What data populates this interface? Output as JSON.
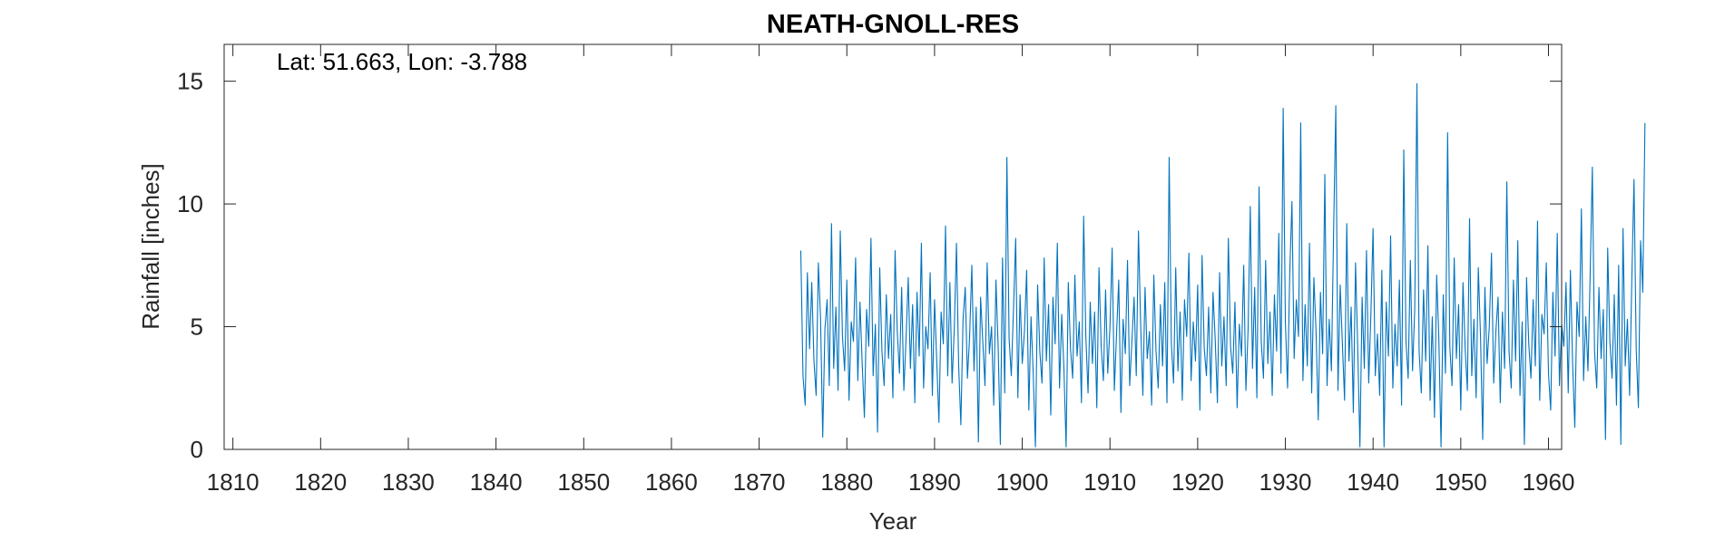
{
  "chart_data": {
    "type": "line",
    "title": "NEATH-GNOLL-RES",
    "xlabel": "Year",
    "ylabel": "Rainfall [inches]",
    "annotation": "Lat: 51.663, Lon: -3.788",
    "xlim": [
      1809,
      1961.5
    ],
    "ylim": [
      0,
      16.5
    ],
    "x_ticks": [
      1810,
      1820,
      1830,
      1840,
      1850,
      1860,
      1870,
      1880,
      1890,
      1900,
      1910,
      1920,
      1930,
      1940,
      1950,
      1960
    ],
    "y_ticks": [
      0,
      5,
      10,
      15
    ],
    "x_tick_labels": [
      "1810",
      "1820",
      "1830",
      "1840",
      "1850",
      "1860",
      "1870",
      "1880",
      "1890",
      "1900",
      "1910",
      "1920",
      "1930",
      "1940",
      "1950",
      "1960"
    ],
    "y_tick_labels": [
      "0",
      "5",
      "10",
      "15"
    ],
    "grid": false,
    "box": true,
    "line_color": "#0072BD",
    "series": [
      {
        "x_start": 1874.75,
        "x_step": 0.25,
        "values": [
          8.1,
          3.0,
          1.8,
          7.2,
          4.1,
          6.8,
          3.6,
          2.2,
          7.6,
          5.4,
          0.5,
          4.9,
          6.1,
          2.6,
          9.2,
          3.3,
          5.8,
          2.4,
          8.9,
          4.6,
          3.2,
          6.9,
          2.0,
          5.2,
          4.4,
          7.8,
          2.8,
          6.0,
          3.5,
          1.3,
          5.7,
          4.2,
          8.6,
          3.0,
          5.1,
          0.7,
          7.4,
          4.0,
          2.6,
          6.3,
          3.7,
          5.5,
          2.1,
          8.1,
          4.8,
          3.1,
          6.6,
          2.4,
          4.5,
          7.0,
          3.3,
          5.9,
          1.9,
          6.4,
          3.8,
          8.4,
          2.5,
          5.0,
          4.1,
          7.2,
          2.2,
          6.1,
          3.6,
          1.1,
          5.6,
          4.3,
          9.1,
          3.0,
          6.8,
          2.7,
          4.9,
          8.4,
          3.4,
          1.0,
          5.3,
          6.6,
          2.9,
          4.6,
          7.5,
          3.2,
          5.8,
          0.3,
          6.2,
          4.4,
          2.6,
          7.6,
          3.9,
          5.0,
          1.8,
          6.9,
          4.2,
          0.2,
          7.8,
          2.3,
          11.9,
          4.5,
          3.0,
          5.7,
          8.6,
          2.1,
          6.3,
          3.5,
          4.8,
          7.3,
          1.6,
          5.4,
          3.1,
          0.1,
          6.7,
          4.0,
          2.7,
          7.8,
          3.6,
          5.9,
          1.4,
          6.2,
          4.3,
          8.4,
          2.5,
          5.5,
          3.3,
          0.1,
          6.8,
          4.1,
          2.9,
          7.1,
          3.8,
          5.2,
          1.9,
          9.5,
          4.6,
          2.3,
          6.0,
          3.5,
          5.6,
          1.7,
          7.4,
          4.2,
          2.8,
          6.5,
          3.1,
          5.0,
          8.2,
          2.4,
          4.7,
          6.9,
          1.5,
          5.3,
          3.9,
          7.7,
          2.6,
          4.4,
          6.2,
          3.0,
          8.9,
          5.1,
          2.2,
          6.6,
          3.7,
          4.8,
          1.8,
          7.1,
          4.0,
          2.5,
          5.9,
          3.4,
          6.8,
          1.9,
          11.9,
          4.3,
          2.7,
          7.4,
          3.2,
          5.6,
          2.0,
          6.1,
          4.6,
          8.0,
          2.8,
          5.2,
          3.6,
          6.7,
          1.6,
          7.9,
          4.1,
          3.0,
          5.8,
          2.3,
          6.4,
          4.5,
          1.9,
          7.2,
          3.4,
          5.4,
          2.6,
          8.6,
          4.2,
          3.1,
          6.0,
          1.7,
          5.1,
          3.8,
          7.5,
          2.4,
          4.9,
          9.9,
          3.3,
          6.6,
          2.1,
          10.7,
          4.4,
          2.9,
          7.7,
          3.5,
          5.6,
          2.2,
          6.3,
          4.0,
          8.8,
          3.1,
          13.9,
          5.2,
          2.5,
          7.2,
          10.1,
          3.7,
          6.1,
          4.6,
          13.3,
          2.8,
          5.9,
          3.4,
          8.4,
          2.3,
          7.0,
          4.8,
          1.2,
          6.4,
          3.9,
          11.2,
          2.6,
          5.3,
          3.2,
          8.9,
          14.0,
          2.4,
          6.7,
          4.3,
          2.0,
          9.2,
          3.6,
          5.8,
          1.5,
          7.6,
          4.1,
          0.1,
          6.2,
          3.3,
          8.1,
          2.7,
          5.5,
          9.0,
          3.0,
          4.7,
          2.2,
          7.3,
          0.1,
          6.0,
          3.8,
          8.7,
          2.5,
          5.1,
          3.4,
          6.9,
          1.8,
          12.2,
          4.4,
          2.9,
          7.7,
          3.2,
          5.7,
          14.9,
          4.0,
          2.3,
          6.5,
          3.6,
          8.3,
          2.0,
          5.4,
          1.3,
          7.1,
          4.5,
          0.1,
          6.3,
          3.1,
          12.9,
          4.2,
          2.6,
          7.8,
          3.7,
          5.9,
          1.6,
          6.8,
          4.1,
          2.4,
          9.4,
          3.0,
          5.3,
          2.1,
          7.4,
          4.6,
          0.4,
          6.6,
          3.5,
          5.0,
          8.0,
          2.7,
          4.8,
          6.2,
          1.9,
          5.6,
          3.3,
          10.9,
          4.0,
          2.5,
          6.9,
          3.6,
          8.5,
          2.2,
          5.2,
          0.2,
          7.0,
          4.3,
          2.9,
          6.1,
          3.4,
          9.3,
          2.0,
          5.5,
          4.7,
          7.6,
          3.1,
          1.6,
          6.4,
          3.8,
          8.8,
          2.6,
          5.1,
          4.2,
          6.8,
          2.3,
          7.3,
          3.5,
          0.9,
          6.0,
          4.6,
          9.8,
          2.8,
          5.4,
          3.2,
          7.1,
          11.5,
          4.0,
          2.5,
          6.6,
          3.7,
          5.7,
          0.4,
          8.2,
          4.4,
          2.9,
          6.3,
          1.8,
          7.5,
          0.2,
          9.0,
          3.4,
          5.3,
          2.2,
          6.9,
          11.0,
          4.1,
          1.7,
          8.5,
          6.4,
          13.3
        ]
      }
    ]
  }
}
